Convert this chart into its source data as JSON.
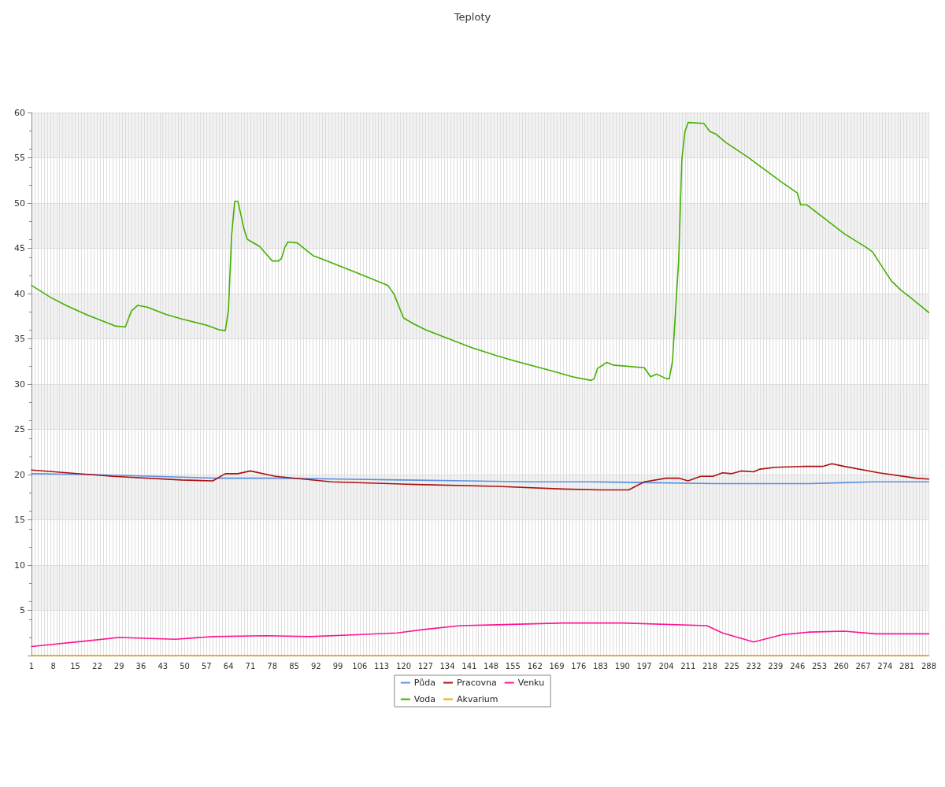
{
  "chart_data": {
    "type": "line",
    "title": "Teploty",
    "series": [
      {
        "name": "Půda",
        "color": "#5b8fe0",
        "x": [
          1,
          20,
          40,
          60,
          80,
          100,
          120,
          140,
          160,
          180,
          200,
          220,
          240,
          250,
          260,
          270,
          288
        ],
        "values": [
          20.1,
          20.0,
          19.8,
          19.6,
          19.6,
          19.5,
          19.4,
          19.3,
          19.2,
          19.2,
          19.1,
          19.0,
          19.0,
          19.0,
          19.1,
          19.2,
          19.2
        ]
      },
      {
        "name": "Voda",
        "color": "#44b000",
        "x": [
          1,
          7,
          12,
          19,
          28,
          31,
          33,
          35,
          38,
          44,
          49,
          57,
          61,
          63,
          64,
          65,
          66,
          67,
          69,
          70,
          74,
          76,
          78,
          80,
          81,
          82,
          83,
          86,
          91,
          94,
          105,
          115,
          117,
          120,
          123,
          127,
          139,
          142,
          150,
          155,
          169,
          174,
          180,
          181,
          182,
          185,
          187,
          197,
          199,
          201,
          204,
          205,
          206,
          208,
          209,
          210,
          211,
          216,
          218,
          220,
          223,
          230,
          241,
          246,
          247,
          249,
          261,
          268,
          270,
          276,
          279,
          282,
          288
        ],
        "values": [
          40.9,
          39.6,
          38.7,
          37.6,
          36.4,
          36.3,
          38.1,
          38.7,
          38.5,
          37.7,
          37.2,
          36.5,
          36.0,
          35.9,
          38.2,
          46.4,
          50.2,
          50.2,
          47.1,
          46.0,
          45.2,
          44.4,
          43.6,
          43.6,
          43.9,
          45.1,
          45.7,
          45.6,
          44.2,
          43.8,
          42.3,
          40.9,
          39.9,
          37.3,
          36.7,
          36.0,
          34.4,
          34.0,
          33.1,
          32.6,
          31.3,
          30.8,
          30.4,
          30.6,
          31.7,
          32.4,
          32.1,
          31.8,
          30.8,
          31.1,
          30.6,
          30.6,
          32.5,
          43.7,
          54.8,
          57.9,
          58.9,
          58.8,
          57.9,
          57.6,
          56.7,
          55.1,
          52.3,
          51.1,
          49.8,
          49.8,
          46.6,
          45.1,
          44.6,
          41.4,
          40.4,
          39.6,
          37.9
        ]
      },
      {
        "name": "Pracovna",
        "color": "#aa1111",
        "x": [
          1,
          27,
          49,
          59,
          63,
          67,
          71,
          79,
          97,
          124,
          150,
          171,
          183,
          192,
          197,
          204,
          208,
          211,
          215,
          219,
          222,
          225,
          228,
          232,
          234,
          239,
          248,
          254,
          257,
          261,
          272,
          284,
          288
        ],
        "values": [
          20.5,
          19.8,
          19.4,
          19.3,
          20.1,
          20.1,
          20.4,
          19.8,
          19.2,
          18.9,
          18.7,
          18.4,
          18.3,
          18.3,
          19.2,
          19.6,
          19.6,
          19.3,
          19.8,
          19.8,
          20.2,
          20.1,
          20.4,
          20.3,
          20.6,
          20.8,
          20.9,
          20.9,
          21.2,
          20.9,
          20.2,
          19.6,
          19.5
        ]
      },
      {
        "name": "Akvarium",
        "color": "#ffa500",
        "x": [
          1,
          288
        ],
        "values": [
          0,
          0
        ]
      },
      {
        "name": "Venku",
        "color": "#ff1493",
        "x": [
          1,
          18,
          29,
          47,
          59,
          76,
          90,
          105,
          118,
          127,
          138,
          150,
          171,
          190,
          217,
          222,
          232,
          241,
          250,
          261,
          271,
          288
        ],
        "values": [
          1.0,
          1.6,
          2.0,
          1.8,
          2.1,
          2.2,
          2.1,
          2.3,
          2.5,
          2.9,
          3.3,
          3.4,
          3.6,
          3.6,
          3.3,
          2.5,
          1.5,
          2.3,
          2.6,
          2.7,
          2.4,
          2.4
        ]
      }
    ],
    "xlim": [
      1,
      288
    ],
    "xticks": [
      1,
      {
        "value": 2,
        "label": null
      },
      {
        "value": 3,
        "label": null
      },
      {
        "value": 4,
        "label": null
      },
      {
        "value": 5,
        "label": null
      },
      {
        "value": 6,
        "label": null
      },
      {
        "value": 7,
        "label": null
      },
      8,
      {
        "value": 9,
        "label": null
      },
      {
        "value": 10,
        "label": null
      },
      {
        "value": 11,
        "label": null
      },
      {
        "value": 12,
        "label": null
      },
      {
        "value": 13,
        "label": null
      },
      {
        "value": 14,
        "label": null
      },
      15,
      {
        "value": 16,
        "label": null
      },
      {
        "value": 17,
        "label": null
      },
      {
        "value": 18,
        "label": null
      },
      {
        "value": 19,
        "label": null
      },
      {
        "value": 20,
        "label": null
      },
      {
        "value": 21,
        "label": null
      },
      22,
      {
        "value": 23,
        "label": null
      },
      {
        "value": 24,
        "label": null
      },
      {
        "value": 25,
        "label": null
      },
      {
        "value": 26,
        "label": null
      },
      {
        "value": 27,
        "label": null
      },
      {
        "value": 28,
        "label": null
      },
      29,
      {
        "value": 30,
        "label": null
      },
      {
        "value": 31,
        "label": null
      },
      {
        "value": 32,
        "label": null
      },
      {
        "value": 33,
        "label": null
      },
      {
        "value": 34,
        "label": null
      },
      {
        "value": 35,
        "label": null
      },
      36,
      {
        "value": 37,
        "label": null
      },
      {
        "value": 38,
        "label": null
      },
      {
        "value": 39,
        "label": null
      },
      {
        "value": 40,
        "label": null
      },
      {
        "value": 41,
        "label": null
      },
      {
        "value": 42,
        "label": null
      },
      43,
      {
        "value": 44,
        "label": null
      },
      {
        "value": 45,
        "label": null
      },
      {
        "value": 46,
        "label": null
      },
      {
        "value": 47,
        "label": null
      },
      {
        "value": 48,
        "label": null
      },
      {
        "value": 49,
        "label": null
      },
      50,
      {
        "value": 51,
        "label": null
      },
      {
        "value": 52,
        "label": null
      },
      {
        "value": 53,
        "label": null
      },
      {
        "value": 54,
        "label": null
      },
      {
        "value": 55,
        "label": null
      },
      {
        "value": 56,
        "label": null
      },
      57,
      {
        "value": 58,
        "label": null
      },
      {
        "value": 59,
        "label": null
      },
      {
        "value": 60,
        "label": null
      },
      {
        "value": 61,
        "label": null
      },
      {
        "value": 62,
        "label": null
      },
      {
        "value": 63,
        "label": null
      },
      64,
      {
        "value": 65,
        "label": null
      },
      {
        "value": 66,
        "label": null
      },
      {
        "value": 67,
        "label": null
      },
      {
        "value": 68,
        "label": null
      },
      {
        "value": 69,
        "label": null
      },
      {
        "value": 70,
        "label": null
      },
      71,
      {
        "value": 72,
        "label": null
      },
      {
        "value": 73,
        "label": null
      },
      {
        "value": 74,
        "label": null
      },
      {
        "value": 75,
        "label": null
      },
      {
        "value": 76,
        "label": null
      },
      {
        "value": 77,
        "label": null
      },
      78,
      {
        "value": 79,
        "label": null
      },
      {
        "value": 80,
        "label": null
      },
      {
        "value": 81,
        "label": null
      },
      {
        "value": 82,
        "label": null
      },
      {
        "value": 83,
        "label": null
      },
      {
        "value": 84,
        "label": null
      },
      85,
      {
        "value": 86,
        "label": null
      },
      {
        "value": 87,
        "label": null
      },
      {
        "value": 88,
        "label": null
      },
      {
        "value": 89,
        "label": null
      },
      {
        "value": 90,
        "label": null
      },
      {
        "value": 91,
        "label": null
      },
      92,
      {
        "value": 93,
        "label": null
      },
      {
        "value": 94,
        "label": null
      },
      {
        "value": 95,
        "label": null
      },
      {
        "value": 96,
        "label": null
      },
      {
        "value": 97,
        "label": null
      },
      {
        "value": 98,
        "label": null
      },
      99,
      {
        "value": 100,
        "label": null
      },
      {
        "value": 101,
        "label": null
      },
      {
        "value": 102,
        "label": null
      },
      {
        "value": 103,
        "label": null
      },
      {
        "value": 104,
        "label": null
      },
      {
        "value": 105,
        "label": null
      },
      106,
      {
        "value": 107,
        "label": null
      },
      {
        "value": 108,
        "label": null
      },
      {
        "value": 109,
        "label": null
      },
      {
        "value": 110,
        "label": null
      },
      {
        "value": 111,
        "label": null
      },
      {
        "value": 112,
        "label": null
      },
      113,
      {
        "value": 114,
        "label": null
      },
      {
        "value": 115,
        "label": null
      },
      {
        "value": 116,
        "label": null
      },
      {
        "value": 117,
        "label": null
      },
      {
        "value": 118,
        "label": null
      },
      {
        "value": 119,
        "label": null
      },
      120,
      {
        "value": 121,
        "label": null
      },
      {
        "value": 122,
        "label": null
      },
      {
        "value": 123,
        "label": null
      },
      {
        "value": 124,
        "label": null
      },
      {
        "value": 125,
        "label": null
      },
      {
        "value": 126,
        "label": null
      },
      127,
      {
        "value": 128,
        "label": null
      },
      {
        "value": 129,
        "label": null
      },
      {
        "value": 130,
        "label": null
      },
      {
        "value": 131,
        "label": null
      },
      {
        "value": 132,
        "label": null
      },
      {
        "value": 133,
        "label": null
      },
      134,
      {
        "value": 135,
        "label": null
      },
      {
        "value": 136,
        "label": null
      },
      {
        "value": 137,
        "label": null
      },
      {
        "value": 138,
        "label": null
      },
      {
        "value": 139,
        "label": null
      },
      {
        "value": 140,
        "label": null
      },
      141,
      {
        "value": 142,
        "label": null
      },
      {
        "value": 143,
        "label": null
      },
      {
        "value": 144,
        "label": null
      },
      {
        "value": 145,
        "label": null
      },
      {
        "value": 146,
        "label": null
      },
      {
        "value": 147,
        "label": null
      },
      148,
      {
        "value": 149,
        "label": null
      },
      {
        "value": 150,
        "label": null
      },
      {
        "value": 151,
        "label": null
      },
      {
        "value": 152,
        "label": null
      },
      {
        "value": 153,
        "label": null
      },
      {
        "value": 154,
        "label": null
      },
      155,
      {
        "value": 156,
        "label": null
      },
      {
        "value": 157,
        "label": null
      },
      {
        "value": 158,
        "label": null
      },
      {
        "value": 159,
        "label": null
      },
      {
        "value": 160,
        "label": null
      },
      {
        "value": 161,
        "label": null
      },
      162,
      {
        "value": 163,
        "label": null
      },
      {
        "value": 164,
        "label": null
      },
      {
        "value": 165,
        "label": null
      },
      {
        "value": 166,
        "label": null
      },
      {
        "value": 167,
        "label": null
      },
      {
        "value": 168,
        "label": null
      },
      169,
      {
        "value": 170,
        "label": null
      },
      {
        "value": 171,
        "label": null
      },
      {
        "value": 172,
        "label": null
      },
      {
        "value": 173,
        "label": null
      },
      {
        "value": 174,
        "label": null
      },
      {
        "value": 175,
        "label": null
      },
      176,
      {
        "value": 177,
        "label": null
      },
      {
        "value": 178,
        "label": null
      },
      {
        "value": 179,
        "label": null
      },
      {
        "value": 180,
        "label": null
      },
      {
        "value": 181,
        "label": null
      },
      {
        "value": 182,
        "label": null
      },
      183,
      {
        "value": 184,
        "label": null
      },
      {
        "value": 185,
        "label": null
      },
      {
        "value": 186,
        "label": null
      },
      {
        "value": 187,
        "label": null
      },
      {
        "value": 188,
        "label": null
      },
      {
        "value": 189,
        "label": null
      },
      190,
      {
        "value": 191,
        "label": null
      },
      {
        "value": 192,
        "label": null
      },
      {
        "value": 193,
        "label": null
      },
      {
        "value": 194,
        "label": null
      },
      {
        "value": 195,
        "label": null
      },
      {
        "value": 196,
        "label": null
      },
      197,
      {
        "value": 198,
        "label": null
      },
      {
        "value": 199,
        "label": null
      },
      {
        "value": 200,
        "label": null
      },
      {
        "value": 201,
        "label": null
      },
      {
        "value": 202,
        "label": null
      },
      {
        "value": 203,
        "label": null
      },
      204,
      {
        "value": 205,
        "label": null
      },
      {
        "value": 206,
        "label": null
      },
      {
        "value": 207,
        "label": null
      },
      {
        "value": 208,
        "label": null
      },
      {
        "value": 209,
        "label": null
      },
      {
        "value": 210,
        "label": null
      },
      211,
      {
        "value": 212,
        "label": null
      },
      {
        "value": 213,
        "label": null
      },
      {
        "value": 214,
        "label": null
      },
      {
        "value": 215,
        "label": null
      },
      {
        "value": 216,
        "label": null
      },
      {
        "value": 217,
        "label": null
      },
      218,
      {
        "value": 219,
        "label": null
      },
      {
        "value": 220,
        "label": null
      },
      {
        "value": 221,
        "label": null
      },
      {
        "value": 222,
        "label": null
      },
      {
        "value": 223,
        "label": null
      },
      {
        "value": 224,
        "label": null
      },
      225,
      {
        "value": 226,
        "label": null
      },
      {
        "value": 227,
        "label": null
      },
      {
        "value": 228,
        "label": null
      },
      {
        "value": 229,
        "label": null
      },
      {
        "value": 230,
        "label": null
      },
      {
        "value": 231,
        "label": null
      },
      232,
      {
        "value": 233,
        "label": null
      },
      {
        "value": 234,
        "label": null
      },
      {
        "value": 235,
        "label": null
      },
      {
        "value": 236,
        "label": null
      },
      {
        "value": 237,
        "label": null
      },
      {
        "value": 238,
        "label": null
      },
      239,
      {
        "value": 240,
        "label": null
      },
      {
        "value": 241,
        "label": null
      },
      {
        "value": 242,
        "label": null
      },
      {
        "value": 243,
        "label": null
      },
      {
        "value": 244,
        "label": null
      },
      {
        "value": 245,
        "label": null
      },
      246,
      {
        "value": 247,
        "label": null
      },
      {
        "value": 248,
        "label": null
      },
      {
        "value": 249,
        "label": null
      },
      {
        "value": 250,
        "label": null
      },
      {
        "value": 251,
        "label": null
      },
      {
        "value": 252,
        "label": null
      },
      253,
      {
        "value": 254,
        "label": null
      },
      {
        "value": 255,
        "label": null
      },
      {
        "value": 256,
        "label": null
      },
      {
        "value": 257,
        "label": null
      },
      {
        "value": 258,
        "label": null
      },
      {
        "value": 259,
        "label": null
      },
      260,
      {
        "value": 261,
        "label": null
      },
      {
        "value": 262,
        "label": null
      },
      {
        "value": 263,
        "label": null
      },
      {
        "value": 264,
        "label": null
      },
      {
        "value": 265,
        "label": null
      },
      {
        "value": 266,
        "label": null
      },
      267,
      {
        "value": 268,
        "label": null
      },
      {
        "value": 269,
        "label": null
      },
      {
        "value": 270,
        "label": null
      },
      {
        "value": 271,
        "label": null
      },
      {
        "value": 272,
        "label": null
      },
      {
        "value": 273,
        "label": null
      },
      274,
      {
        "value": 275,
        "label": null
      },
      {
        "value": 276,
        "label": null
      },
      {
        "value": 277,
        "label": null
      },
      {
        "value": 278,
        "label": null
      },
      {
        "value": 279,
        "label": null
      },
      {
        "value": 280,
        "label": null
      },
      281,
      {
        "value": 282,
        "label": null
      },
      {
        "value": 283,
        "label": null
      },
      {
        "value": 284,
        "label": null
      },
      {
        "value": 285,
        "label": null
      },
      {
        "value": 286,
        "label": null
      },
      {
        "value": 287,
        "label": null
      },
      288
    ],
    "ylim": [
      0,
      60
    ],
    "yticks": [
      {
        "value": 0,
        "label": null
      },
      5,
      10,
      15,
      20,
      25,
      30,
      35,
      40,
      45,
      50,
      55,
      60
    ],
    "grid": true,
    "legend": "bottom",
    "marker": "none",
    "line_style": "solid"
  }
}
